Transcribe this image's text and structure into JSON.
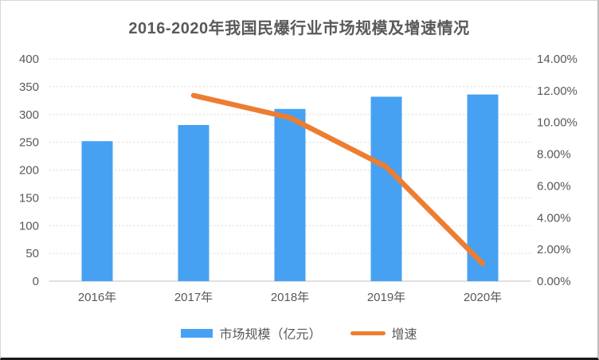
{
  "chart_data": {
    "type": "combo-bar-line",
    "title": "2016-2020年我国民爆行业市场规模及增速情况",
    "categories": [
      "2016年",
      "2017年",
      "2018年",
      "2019年",
      "2020年"
    ],
    "series": [
      {
        "name": "市场规模（亿元）",
        "type": "bar",
        "axis": "left",
        "color": "#46a1f3",
        "values": [
          252,
          281,
          310,
          332,
          336
        ]
      },
      {
        "name": "增速",
        "type": "line",
        "axis": "right",
        "color": "#ed7d31",
        "values": [
          null,
          11.7,
          10.3,
          7.2,
          1.1
        ]
      }
    ],
    "left_axis": {
      "min": 0,
      "max": 400,
      "tick_values": [
        0,
        50,
        100,
        150,
        200,
        250,
        300,
        350,
        400
      ],
      "tick_labels": [
        "0",
        "50",
        "100",
        "150",
        "200",
        "250",
        "300",
        "350",
        "400"
      ]
    },
    "right_axis": {
      "min": 0,
      "max": 14,
      "tick_values": [
        0,
        2,
        4,
        6,
        8,
        10,
        12,
        14
      ],
      "tick_labels": [
        "0.00%",
        "2.00%",
        "4.00%",
        "6.00%",
        "8.00%",
        "10.00%",
        "12.00%",
        "14.00%"
      ]
    },
    "grid": true,
    "legend_position": "bottom"
  },
  "colors": {
    "bar": "#46a1f3",
    "line": "#ed7d31",
    "grid": "#d9d9d9",
    "baseline": "#bfbfbf",
    "text": "#595959",
    "title": "#595959"
  }
}
